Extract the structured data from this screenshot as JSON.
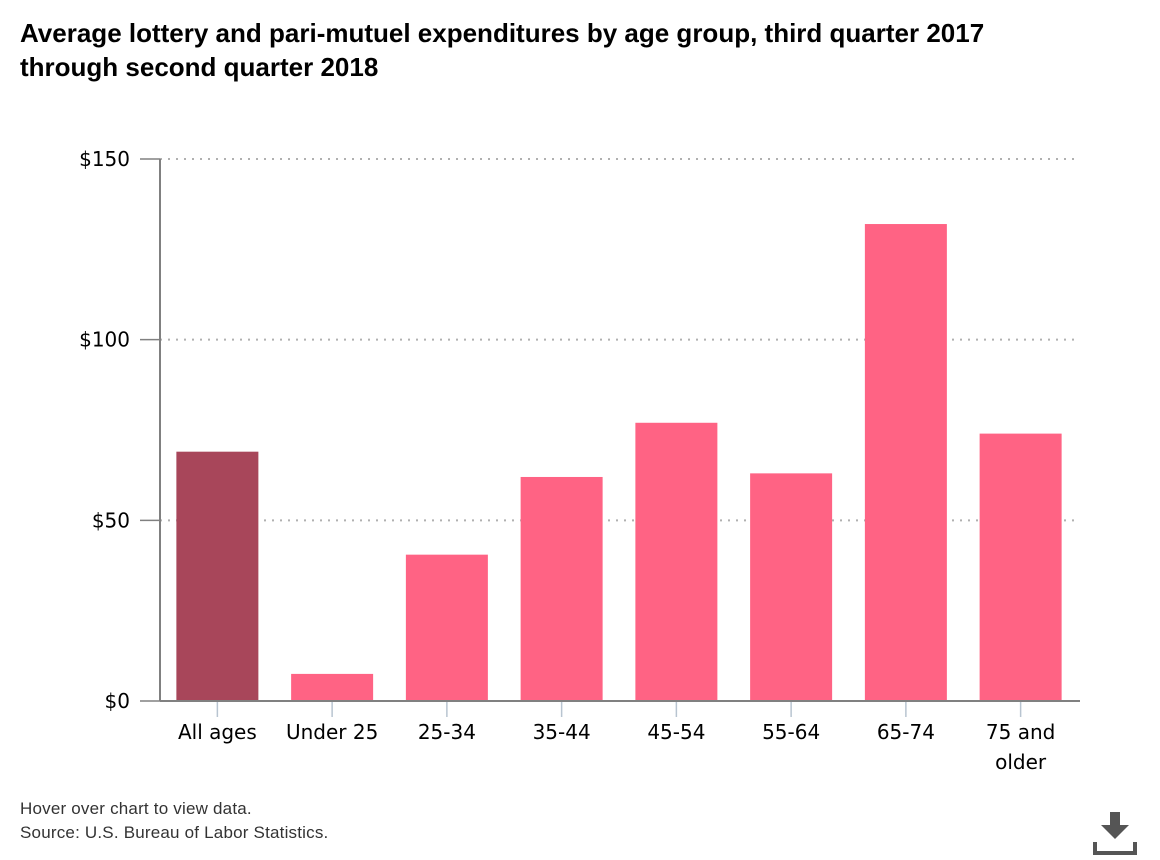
{
  "chart_data": {
    "type": "bar",
    "title": "Average lottery and pari-mutuel expenditures by age group, third quarter 2017 through second quarter 2018",
    "categories": [
      "All ages",
      "Under 25",
      "25-34",
      "35-44",
      "45-54",
      "55-64",
      "65-74",
      "75 and older"
    ],
    "values": [
      69,
      7.5,
      40.5,
      62,
      77,
      63,
      132,
      74
    ],
    "xlabel": "",
    "ylabel": "",
    "ylim": [
      0,
      150
    ],
    "y_ticks": [
      0,
      50,
      100,
      150
    ],
    "y_tick_labels": [
      "$0",
      "$50",
      "$100",
      "$150"
    ],
    "grid": "horizontal dotted",
    "legend": "none",
    "colors": {
      "highlight": "#a8465a",
      "bar": "#ff6384",
      "axis": "#808080",
      "grid": "#b0b0b0"
    },
    "highlight_index": 0
  },
  "footer": {
    "hover_note": "Hover over chart to view data.",
    "source": "Source: U.S. Bureau of Labor Statistics."
  },
  "download": {
    "icon": "download-icon"
  }
}
